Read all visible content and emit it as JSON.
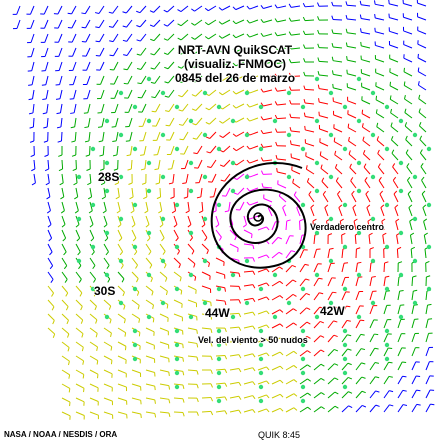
{
  "title": {
    "line1": "NRT-AVN QuikSCAT",
    "line2": "(visualiz. FNMOC)",
    "line3": "0845 del 26 de marzo"
  },
  "labels": {
    "lat_28": "28S",
    "lat_30": "30S",
    "lon_44": "44W",
    "lon_42": "42W",
    "true_center": "Verdadero centro",
    "wind_note": "Vel. del viento > 50 nudos"
  },
  "footer": {
    "credit": "NASA / NOAA / NESDIS / ORA",
    "pass": "QUIK 8:45"
  },
  "wind_colors": {
    "low": "#0000ff",
    "mid_low": "#00aa00",
    "mid": "#cccc00",
    "high": "#ff0000",
    "very_high": "#ff00ff",
    "rain_flag": "#33dd77"
  }
}
